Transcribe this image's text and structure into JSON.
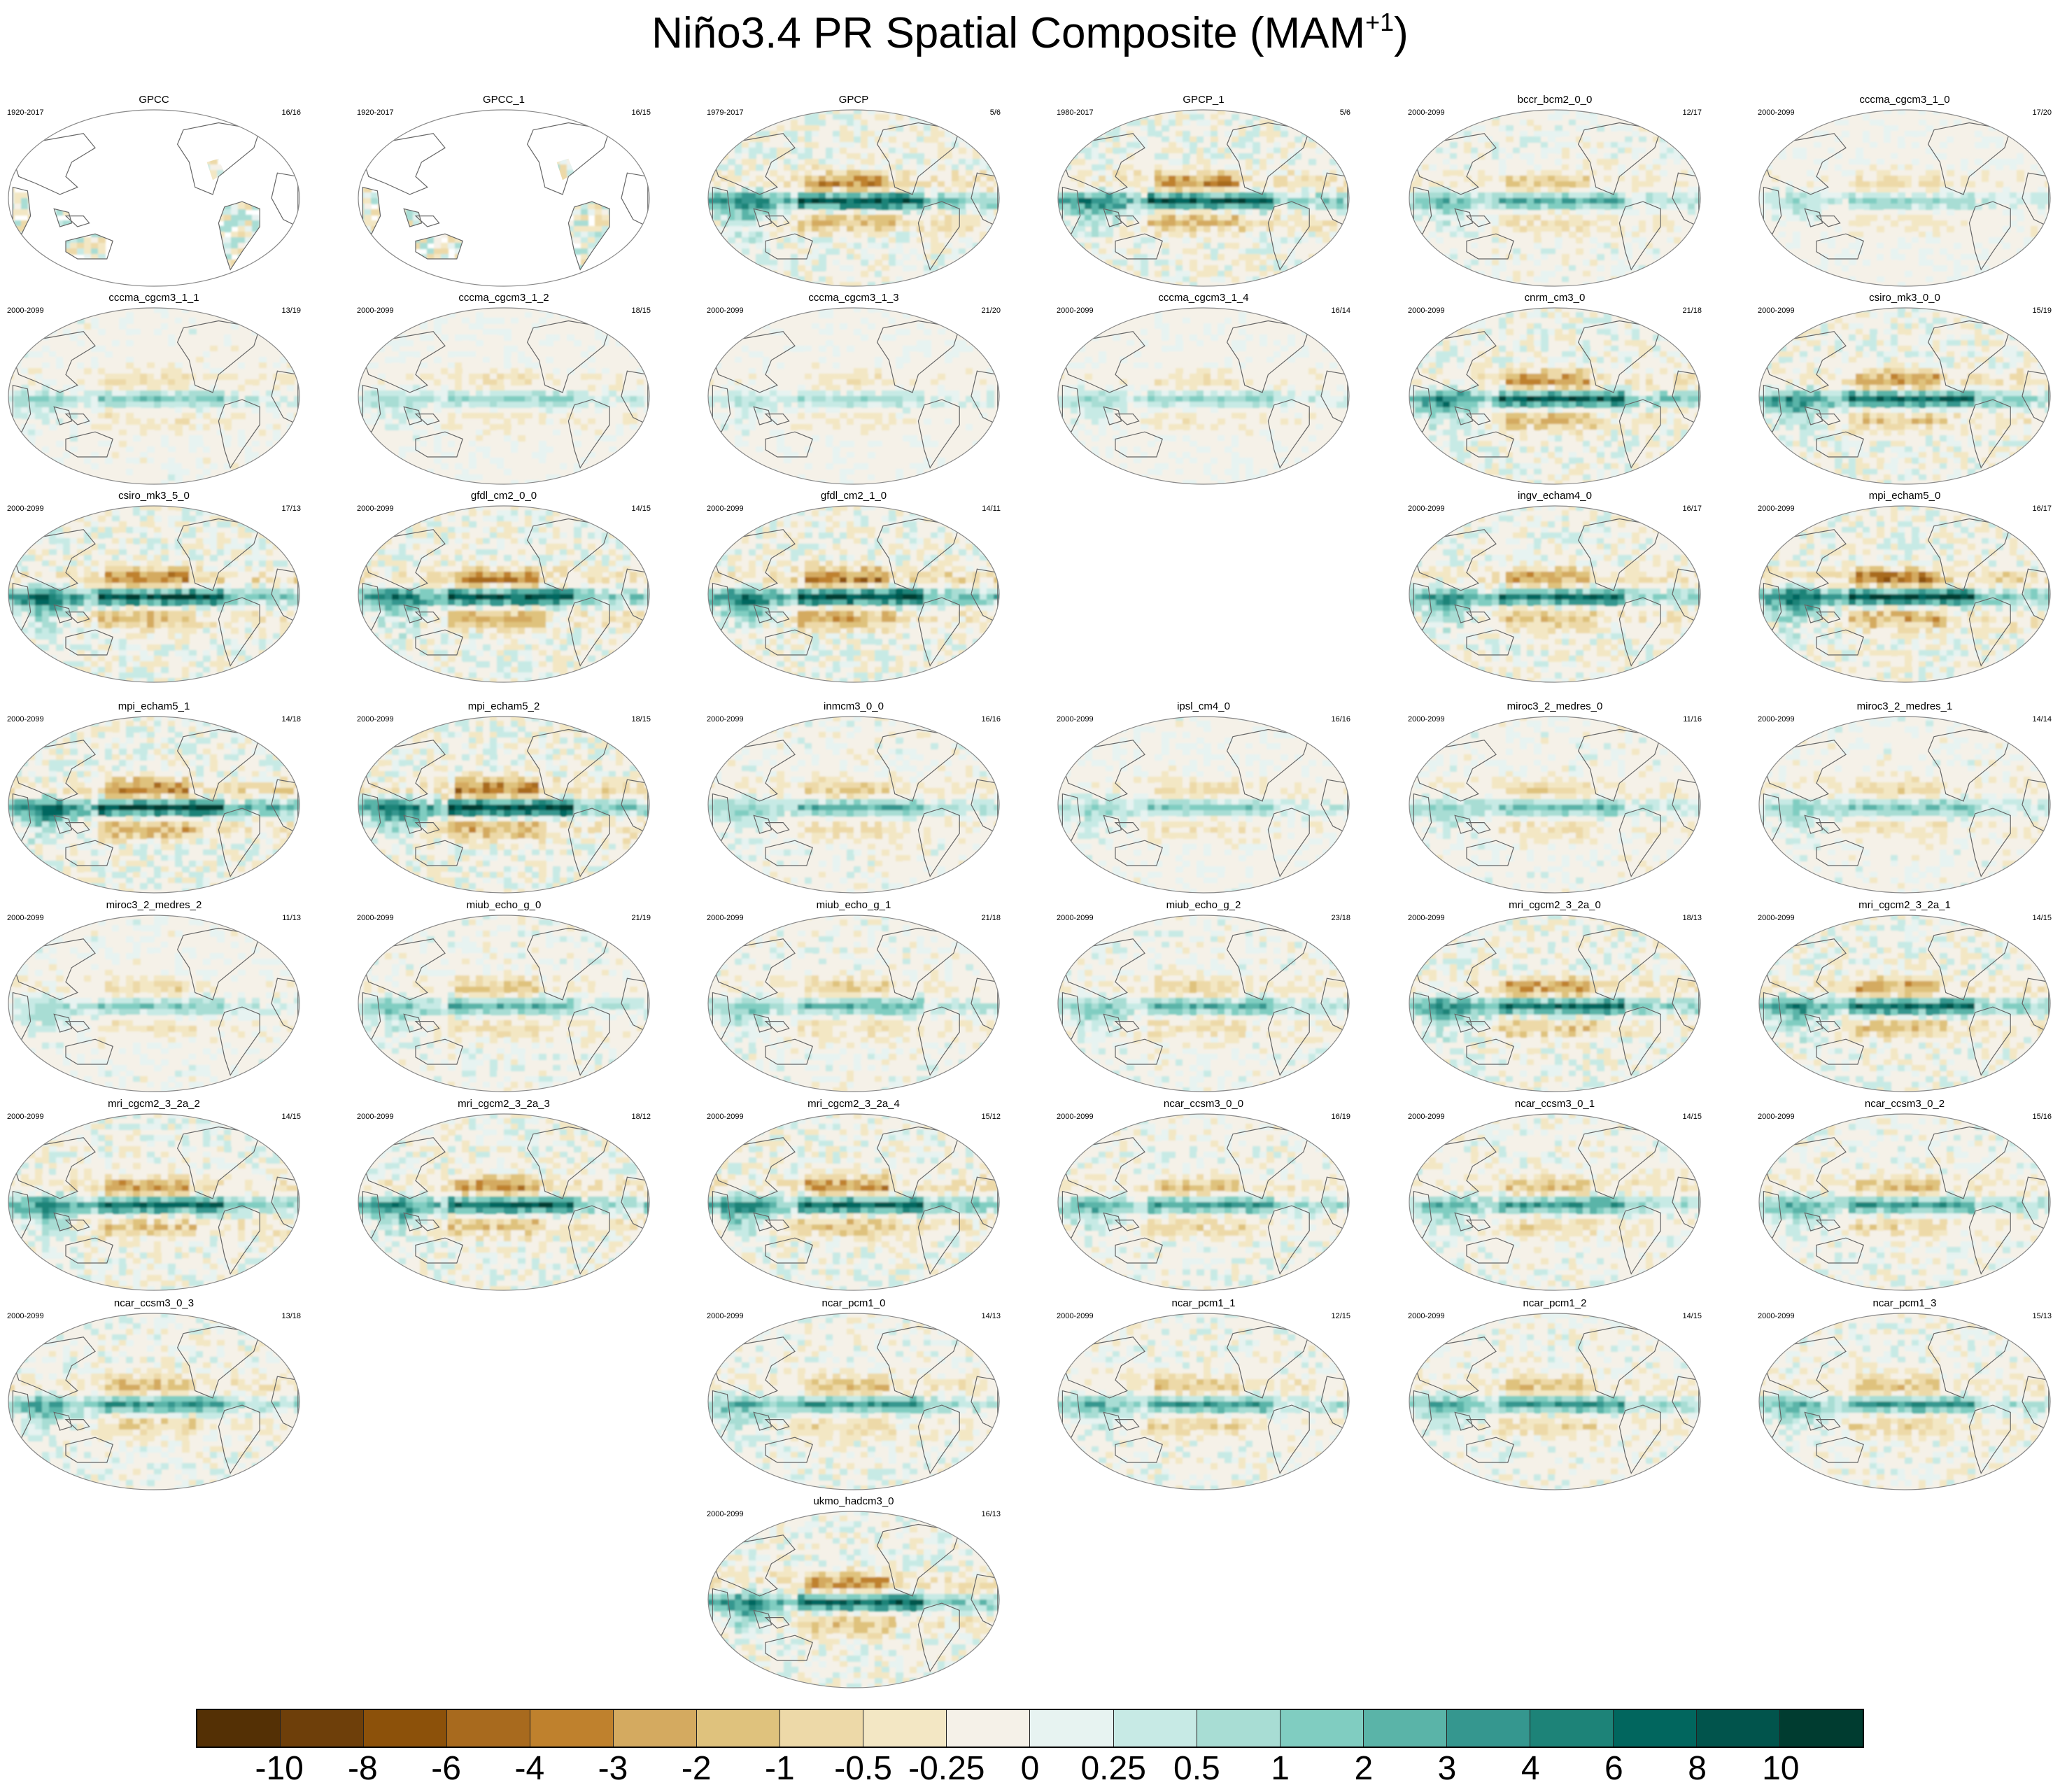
{
  "title": {
    "main": "Niño3.4 PR Spatial Composite (MAM",
    "superscript": "+1",
    "close": ")"
  },
  "panels": [
    {
      "name": "GPCC",
      "years": "1920-2017",
      "count": "16/16",
      "row": 0,
      "col": 0,
      "land_only": true,
      "amp": 0.15,
      "seed": 1
    },
    {
      "name": "GPCC_1",
      "years": "1920-2017",
      "count": "16/15",
      "row": 0,
      "col": 1,
      "land_only": true,
      "amp": 0.15,
      "seed": 2
    },
    {
      "name": "GPCP",
      "years": "1979-2017",
      "count": "5/6",
      "row": 0,
      "col": 2,
      "amp": 0.85,
      "seed": 3
    },
    {
      "name": "GPCP_1",
      "years": "1980-2017",
      "count": "5/6",
      "row": 0,
      "col": 3,
      "amp": 0.85,
      "seed": 4
    },
    {
      "name": "bccr_bcm2_0_0",
      "years": "2000-2099",
      "count": "12/17",
      "row": 0,
      "col": 4,
      "amp": 0.5,
      "seed": 5
    },
    {
      "name": "cccma_cgcm3_1_0",
      "years": "2000-2099",
      "count": "17/20",
      "row": 0,
      "col": 5,
      "amp": 0.3,
      "seed": 6
    },
    {
      "name": "cccma_cgcm3_1_1",
      "years": "2000-2099",
      "count": "13/19",
      "row": 1,
      "col": 0,
      "amp": 0.35,
      "seed": 7
    },
    {
      "name": "cccma_cgcm3_1_2",
      "years": "2000-2099",
      "count": "18/15",
      "row": 1,
      "col": 1,
      "amp": 0.3,
      "seed": 8
    },
    {
      "name": "cccma_cgcm3_1_3",
      "years": "2000-2099",
      "count": "21/20",
      "row": 1,
      "col": 2,
      "amp": 0.25,
      "seed": 9
    },
    {
      "name": "cccma_cgcm3_1_4",
      "years": "2000-2099",
      "count": "16/14",
      "row": 1,
      "col": 3,
      "amp": 0.3,
      "seed": 10
    },
    {
      "name": "cnrm_cm3_0",
      "years": "2000-2099",
      "count": "21/18",
      "row": 1,
      "col": 4,
      "amp": 0.8,
      "seed": 11
    },
    {
      "name": "csiro_mk3_0_0",
      "years": "2000-2099",
      "count": "15/19",
      "row": 1,
      "col": 5,
      "amp": 0.75,
      "seed": 12
    },
    {
      "name": "csiro_mk3_5_0",
      "years": "2000-2099",
      "count": "17/13",
      "row": 2,
      "col": 0,
      "amp": 0.9,
      "seed": 13
    },
    {
      "name": "gfdl_cm2_0_0",
      "years": "2000-2099",
      "count": "14/15",
      "row": 2,
      "col": 1,
      "amp": 0.9,
      "seed": 14
    },
    {
      "name": "gfdl_cm2_1_0",
      "years": "2000-2099",
      "count": "14/11",
      "row": 2,
      "col": 2,
      "amp": 0.95,
      "seed": 15
    },
    {
      "name": "ingv_echam4_0",
      "years": "2000-2099",
      "count": "16/17",
      "row": 2,
      "col": 4,
      "amp": 0.75,
      "seed": 16
    },
    {
      "name": "mpi_echam5_0",
      "years": "2000-2099",
      "count": "16/17",
      "row": 2,
      "col": 5,
      "amp": 0.95,
      "seed": 17
    },
    {
      "name": "mpi_echam5_1",
      "years": "2000-2099",
      "count": "14/18",
      "row": 3,
      "col": 0,
      "amp": 0.95,
      "seed": 18
    },
    {
      "name": "mpi_echam5_2",
      "years": "2000-2099",
      "count": "18/15",
      "row": 3,
      "col": 1,
      "amp": 0.95,
      "seed": 19
    },
    {
      "name": "inmcm3_0_0",
      "years": "2000-2099",
      "count": "16/16",
      "row": 3,
      "col": 2,
      "amp": 0.45,
      "seed": 20
    },
    {
      "name": "ipsl_cm4_0",
      "years": "2000-2099",
      "count": "16/16",
      "row": 3,
      "col": 3,
      "amp": 0.35,
      "seed": 21
    },
    {
      "name": "miroc3_2_medres_0",
      "years": "2000-2099",
      "count": "11/16",
      "row": 3,
      "col": 4,
      "amp": 0.4,
      "seed": 22
    },
    {
      "name": "miroc3_2_medres_1",
      "years": "2000-2099",
      "count": "14/14",
      "row": 3,
      "col": 5,
      "amp": 0.4,
      "seed": 23
    },
    {
      "name": "miroc3_2_medres_2",
      "years": "2000-2099",
      "count": "11/13",
      "row": 4,
      "col": 0,
      "amp": 0.35,
      "seed": 24
    },
    {
      "name": "miub_echo_g_0",
      "years": "2000-2099",
      "count": "21/19",
      "row": 4,
      "col": 1,
      "amp": 0.45,
      "seed": 25
    },
    {
      "name": "miub_echo_g_1",
      "years": "2000-2099",
      "count": "21/18",
      "row": 4,
      "col": 2,
      "amp": 0.45,
      "seed": 26
    },
    {
      "name": "miub_echo_g_2",
      "years": "2000-2099",
      "count": "23/18",
      "row": 4,
      "col": 3,
      "amp": 0.45,
      "seed": 27
    },
    {
      "name": "mri_cgcm2_3_2a_0",
      "years": "2000-2099",
      "count": "18/13",
      "row": 4,
      "col": 4,
      "amp": 0.75,
      "seed": 28
    },
    {
      "name": "mri_cgcm2_3_2a_1",
      "years": "2000-2099",
      "count": "14/15",
      "row": 4,
      "col": 5,
      "amp": 0.75,
      "seed": 29
    },
    {
      "name": "mri_cgcm2_3_2a_2",
      "years": "2000-2099",
      "count": "14/15",
      "row": 5,
      "col": 0,
      "amp": 0.75,
      "seed": 30
    },
    {
      "name": "mri_cgcm2_3_2a_3",
      "years": "2000-2099",
      "count": "18/12",
      "row": 5,
      "col": 1,
      "amp": 0.8,
      "seed": 31
    },
    {
      "name": "mri_cgcm2_3_2a_4",
      "years": "2000-2099",
      "count": "15/12",
      "row": 5,
      "col": 2,
      "amp": 0.8,
      "seed": 32
    },
    {
      "name": "ncar_ccsm3_0_0",
      "years": "2000-2099",
      "count": "16/19",
      "row": 5,
      "col": 3,
      "amp": 0.55,
      "seed": 33
    },
    {
      "name": "ncar_ccsm3_0_1",
      "years": "2000-2099",
      "count": "14/15",
      "row": 5,
      "col": 4,
      "amp": 0.55,
      "seed": 34
    },
    {
      "name": "ncar_ccsm3_0_2",
      "years": "2000-2099",
      "count": "15/16",
      "row": 5,
      "col": 5,
      "amp": 0.55,
      "seed": 35
    },
    {
      "name": "ncar_ccsm3_0_3",
      "years": "2000-2099",
      "count": "13/18",
      "row": 6,
      "col": 0,
      "amp": 0.6,
      "seed": 36
    },
    {
      "name": "ncar_pcm1_0",
      "years": "2000-2099",
      "count": "14/13",
      "row": 6,
      "col": 2,
      "amp": 0.55,
      "seed": 37
    },
    {
      "name": "ncar_pcm1_1",
      "years": "2000-2099",
      "count": "12/15",
      "row": 6,
      "col": 3,
      "amp": 0.55,
      "seed": 38
    },
    {
      "name": "ncar_pcm1_2",
      "years": "2000-2099",
      "count": "14/15",
      "row": 6,
      "col": 4,
      "amp": 0.55,
      "seed": 39
    },
    {
      "name": "ncar_pcm1_3",
      "years": "2000-2099",
      "count": "15/13",
      "row": 6,
      "col": 5,
      "amp": 0.55,
      "seed": 40
    },
    {
      "name": "ukmo_hadcm3_0",
      "years": "2000-2099",
      "count": "16/13",
      "row": 7,
      "col": 2,
      "amp": 0.8,
      "seed": 41
    }
  ],
  "colorbar": {
    "colors": [
      "#543005",
      "#6e3f0a",
      "#8c510a",
      "#a86a1e",
      "#bf812d",
      "#d4aa60",
      "#dfc27d",
      "#edd9a8",
      "#f3e7c4",
      "#f5f1e8",
      "#e7f3f1",
      "#c7eae5",
      "#a8ddd4",
      "#80cdc1",
      "#5ab4a8",
      "#35978f",
      "#1d8378",
      "#01665e",
      "#01544c",
      "#003c30"
    ],
    "labels": [
      "-10",
      "-8",
      "-6",
      "-4",
      "-3",
      "-2",
      "-1",
      "-0.5",
      "-0.25",
      "0",
      "0.25",
      "0.5",
      "1",
      "2",
      "3",
      "4",
      "6",
      "8",
      "10"
    ]
  }
}
